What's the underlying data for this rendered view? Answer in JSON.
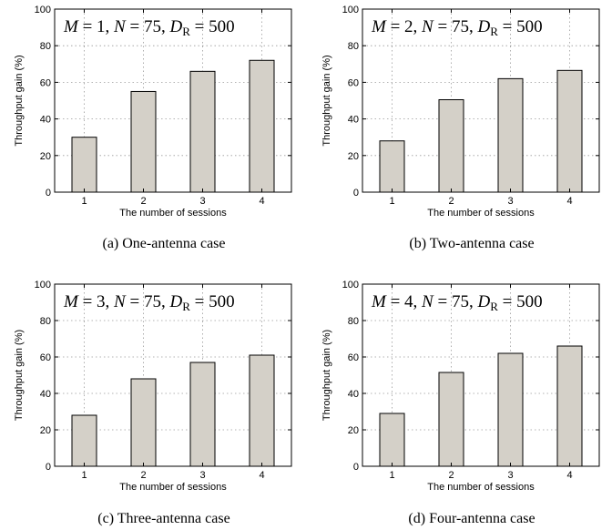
{
  "chart_data": [
    {
      "type": "bar",
      "categories": [
        "1",
        "2",
        "3",
        "4"
      ],
      "values": [
        30,
        55,
        66,
        72
      ],
      "xlabel": "The number of sessions",
      "ylabel": "Throughput gain (%)",
      "ylim": [
        0,
        100
      ],
      "yticks": [
        "0",
        "20",
        "40",
        "60",
        "80",
        "100"
      ],
      "grid": true,
      "bar_color": "#d4d0c8",
      "annotation": {
        "m_var": "M",
        "m_val": "= 1,",
        "n_var": "N",
        "n_val": "= 75,",
        "d_var": "D",
        "d_sub": "R",
        "d_val": "= 500"
      },
      "caption": "(a)  One-antenna case"
    },
    {
      "type": "bar",
      "categories": [
        "1",
        "2",
        "3",
        "4"
      ],
      "values": [
        28,
        50.5,
        62,
        66.5
      ],
      "xlabel": "The number of sessions",
      "ylabel": "Throughput gain (%)",
      "ylim": [
        0,
        100
      ],
      "yticks": [
        "0",
        "20",
        "40",
        "60",
        "80",
        "100"
      ],
      "grid": true,
      "bar_color": "#d4d0c8",
      "annotation": {
        "m_var": "M",
        "m_val": "= 2,",
        "n_var": "N",
        "n_val": "= 75,",
        "d_var": "D",
        "d_sub": "R",
        "d_val": "= 500"
      },
      "caption": "(b)  Two-antenna case"
    },
    {
      "type": "bar",
      "categories": [
        "1",
        "2",
        "3",
        "4"
      ],
      "values": [
        28,
        48,
        57,
        61
      ],
      "xlabel": "The number of sessions",
      "ylabel": "Throughput gain (%)",
      "ylim": [
        0,
        100
      ],
      "yticks": [
        "0",
        "20",
        "40",
        "60",
        "80",
        "100"
      ],
      "grid": true,
      "bar_color": "#d4d0c8",
      "annotation": {
        "m_var": "M",
        "m_val": "= 3,",
        "n_var": "N",
        "n_val": "= 75,",
        "d_var": "D",
        "d_sub": "R",
        "d_val": "= 500"
      },
      "caption": "(c)  Three-antenna case"
    },
    {
      "type": "bar",
      "categories": [
        "1",
        "2",
        "3",
        "4"
      ],
      "values": [
        29,
        51.5,
        62,
        66
      ],
      "xlabel": "The number of sessions",
      "ylabel": "Throughput gain (%)",
      "ylim": [
        0,
        100
      ],
      "yticks": [
        "0",
        "20",
        "40",
        "60",
        "80",
        "100"
      ],
      "grid": true,
      "bar_color": "#d4d0c8",
      "annotation": {
        "m_var": "M",
        "m_val": "= 4,",
        "n_var": "N",
        "n_val": "= 75,",
        "d_var": "D",
        "d_sub": "R",
        "d_val": "= 500"
      },
      "caption": "(d)  Four-antenna case"
    }
  ]
}
